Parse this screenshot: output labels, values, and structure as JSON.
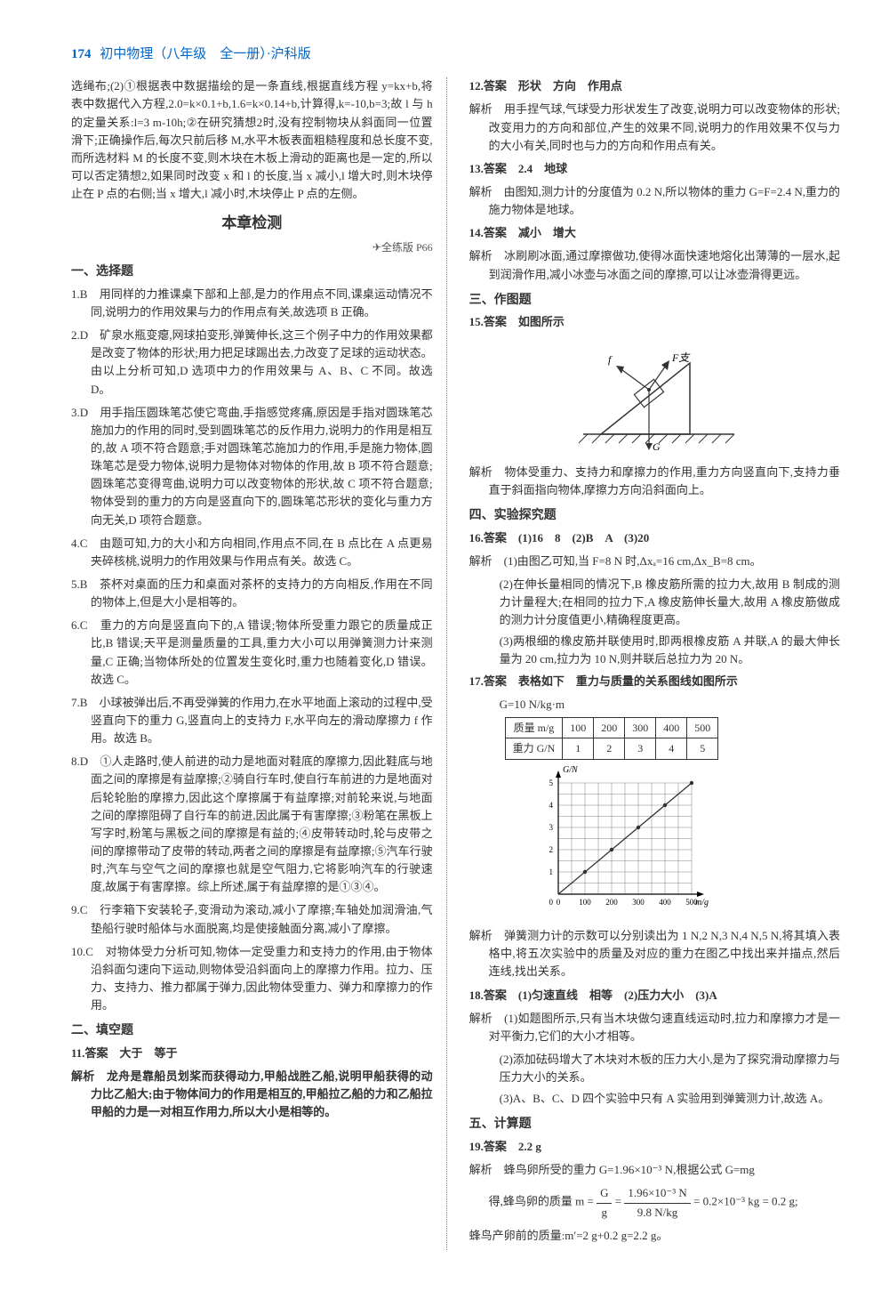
{
  "header": {
    "page": "174",
    "title": "初中物理（八年级　全一册）·沪科版"
  },
  "left": {
    "intro": "选绳布;(2)①根据表中数据描绘的是一条直线,根据直线方程 y=kx+b,将表中数据代入方程,2.0=k×0.1+b,1.6=k×0.14+b,计算得,k=-10,b=3;故 l 与 h 的定量关系:l=3 m-10h;②在研究猜想2时,没有控制物块从斜面同一位置滑下;正确操作后,每次只前后移 M,水平木板表面粗糙程度和总长度不变,而所选材料 M 的长度不变,则木块在木板上滑动的距离也是一定的,所以可以否定猜想2,如果同时改变 x 和 l 的长度,当 x 减小,l 增大时,则木块停止在 P 点的右侧;当 x 增大,l 减小时,木块停止 P 点的左侧。",
    "chapter_title": "本章检测",
    "chapter_ref": "✈全练版 P66",
    "sec1_title": "一、选择题",
    "q1": "1.B　用同样的力推课桌下部和上部,是力的作用点不同,课桌运动情况不同,说明力的作用效果与力的作用点有关,故选项 B 正确。",
    "q2": "2.D　矿泉水瓶变瘪,网球拍变形,弹簧伸长,这三个例子中力的作用效果都是改变了物体的形状;用力把足球踢出去,力改变了足球的运动状态。由以上分析可知,D 选项中力的作用效果与 A、B、C 不同。故选 D。",
    "q3": "3.D　用手指压圆珠笔芯使它弯曲,手指感觉疼痛,原因是手指对圆珠笔芯施加力的作用的同时,受到圆珠笔芯的反作用力,说明力的作用是相互的,故 A 项不符合题意;手对圆珠笔芯施加力的作用,手是施力物体,圆珠笔芯是受力物体,说明力是物体对物体的作用,故 B 项不符合题意;圆珠笔芯变得弯曲,说明力可以改变物体的形状,故 C 项不符合题意;物体受到的重力的方向是竖直向下的,圆珠笔芯形状的变化与重力方向无关,D 项符合题意。",
    "q4": "4.C　由题可知,力的大小和方向相同,作用点不同,在 B 点比在 A 点更易夹碎核桃,说明力的作用效果与作用点有关。故选 C。",
    "q5": "5.B　茶杯对桌面的压力和桌面对茶杯的支持力的方向相反,作用在不同的物体上,但是大小是相等的。",
    "q6": "6.C　重力的方向是竖直向下的,A 错误;物体所受重力跟它的质量成正比,B 错误;天平是测量质量的工具,重力大小可以用弹簧测力计来测量,C 正确;当物体所处的位置发生变化时,重力也随着变化,D 错误。故选 C。",
    "q7": "7.B　小球被弹出后,不再受弹簧的作用力,在水平地面上滚动的过程中,受竖直向下的重力 G,竖直向上的支持力 F,水平向左的滑动摩擦力 f 作用。故选 B。",
    "q8": "8.D　①人走路时,使人前进的动力是地面对鞋底的摩擦力,因此鞋底与地面之间的摩擦是有益摩擦;②骑自行车时,使自行车前进的力是地面对后轮轮胎的摩擦力,因此这个摩擦属于有益摩擦;对前轮来说,与地面之间的摩擦阻碍了自行车的前进,因此属于有害摩擦;③粉笔在黑板上写字时,粉笔与黑板之间的摩擦是有益的;④皮带转动时,轮与皮带之间的摩擦带动了皮带的转动,两者之间的摩擦是有益摩擦;⑤汽车行驶时,汽车与空气之间的摩擦也就是空气阻力,它将影响汽车的行驶速度,故属于有害摩擦。综上所述,属于有益摩擦的是①③④。",
    "q9": "9.C　行李箱下安装轮子,变滑动为滚动,减小了摩擦;车轴处加润滑油,气垫船行驶时船体与水面脱离,均是使接触面分离,减小了摩擦。",
    "q10": "10.C　对物体受力分析可知,物体一定受重力和支持力的作用,由于物体沿斜面匀速向下运动,则物体受沿斜面向上的摩擦力作用。拉力、压力、支持力、推力都属于弹力,因此物体受重力、弹力和摩擦力的作用。",
    "sec2_title": "二、填空题",
    "q11_ans": "11.答案　大于　等于",
    "q11_exp": "解析　龙舟是靠船员划桨而获得动力,甲船战胜乙船,说明甲船获得的动力比乙船大;由于物体间力的作用是相互的,甲船拉乙船的力和乙船拉甲船的力是一对相互作用力,所以大小是相等的。"
  },
  "right": {
    "q12_ans": "12.答案　形状　方向　作用点",
    "q12_exp": "解析　用手捏气球,气球受力形状发生了改变,说明力可以改变物体的形状;改变用力的方向和部位,产生的效果不同,说明力的作用效果不仅与力的大小有关,同时也与力的方向和作用点有关。",
    "q13_ans": "13.答案　2.4　地球",
    "q13_exp": "解析　由图知,测力计的分度值为 0.2 N,所以物体的重力 G=F=2.4 N,重力的施力物体是地球。",
    "q14_ans": "14.答案　减小　增大",
    "q14_exp": "解析　冰刷刷冰面,通过摩擦做功,使得冰面快速地熔化出薄薄的一层水,起到润滑作用,减小冰壶与冰面之间的摩擦,可以让冰壶滑得更远。",
    "sec3_title": "三、作图题",
    "q15_ans": "15.答案　如图所示",
    "q15_exp": "解析　物体受重力、支持力和摩擦力的作用,重力方向竖直向下,支持力垂直于斜面指向物体,摩擦力方向沿斜面向上。",
    "sec4_title": "四、实验探究题",
    "q16_ans": "16.答案　(1)16　8　(2)B　A　(3)20",
    "q16_exp1": "解析　(1)由图乙可知,当 F=8 N 时,Δxₐ=16 cm,Δx_B=8 cm。",
    "q16_exp2": "(2)在伸长量相同的情况下,B 橡皮筋所需的拉力大,故用 B 制成的测力计量程大;在相同的拉力下,A 橡皮筋伸长量大,故用 A 橡皮筋做成的测力计分度值更小,精确程度更高。",
    "q16_exp3": "(3)两根细的橡皮筋并联使用时,即两根橡皮筋 A 并联,A 的最大伸长量为 20 cm,拉力为 10 N,则并联后总拉力为 20 N。",
    "q17_ans": "17.答案　表格如下　重力与质量的关系图线如图所示",
    "q17_note": "G=10 N/kg·m",
    "q17_table": {
      "r1": [
        "质量 m/g",
        "100",
        "200",
        "300",
        "400",
        "500"
      ],
      "r2": [
        "重力 G/N",
        "1",
        "2",
        "3",
        "4",
        "5"
      ]
    },
    "q17_chart": {
      "ylabel": "G/N",
      "xlabel": "m/g",
      "xticks": [
        0,
        100,
        200,
        300,
        400,
        500
      ],
      "yticks": [
        0,
        1,
        2,
        3,
        4,
        5
      ],
      "line_color": "#333333",
      "grid_color": "#666666",
      "points": [
        [
          100,
          1
        ],
        [
          200,
          2
        ],
        [
          300,
          3
        ],
        [
          400,
          4
        ],
        [
          500,
          5
        ]
      ]
    },
    "q17_exp": "解析　弹簧测力计的示数可以分别读出为 1 N,2 N,3 N,4 N,5 N,将其填入表格中,将五次实验中的质量及对应的重力在图乙中找出来并描点,然后连线,找出关系。",
    "q18_ans": "18.答案　(1)匀速直线　相等　(2)压力大小　(3)A",
    "q18_exp1": "解析　(1)如题图所示,只有当木块做匀速直线运动时,拉力和摩擦力才是一对平衡力,它们的大小才相等。",
    "q18_exp2": "(2)添加砝码增大了木块对木板的压力大小,是为了探究滑动摩擦力与压力大小的关系。",
    "q18_exp3": "(3)A、B、C、D 四个实验中只有 A 实验用到弹簧测力计,故选 A。",
    "sec5_title": "五、计算题",
    "q19_ans": "19.答案　2.2 g",
    "q19_exp1": "解析　蜂鸟卵所受的重力 G=1.96×10⁻³ N,根据公式 G=mg",
    "q19_exp2a": "得,蜂鸟卵的质量 m = ",
    "q19_exp2b": " = 0.2×10⁻³ kg = 0.2 g;",
    "q19_frac_top1": "G",
    "q19_frac_bot1": "g",
    "q19_frac_top2": "1.96×10⁻³ N",
    "q19_frac_bot2": "9.8 N/kg",
    "q19_exp3": "蜂鸟产卵前的质量:m′=2 g+0.2 g=2.2 g。"
  }
}
